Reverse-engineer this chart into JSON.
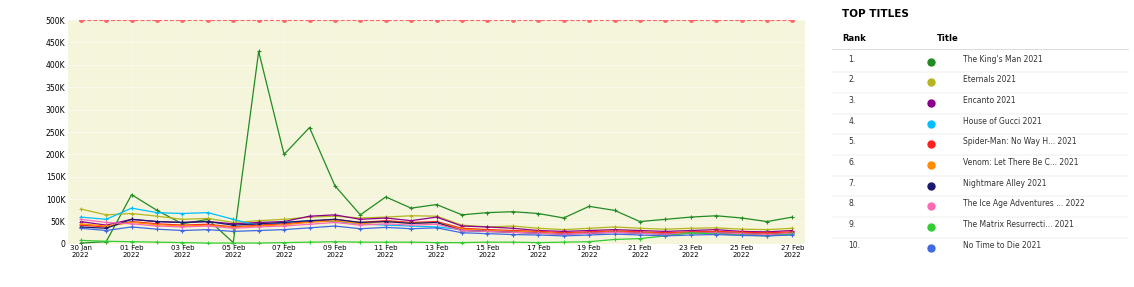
{
  "title": "TOP TITLES",
  "background_color": "#fffff5",
  "plot_bg_color": "#f5f5dc",
  "x_labels": [
    "30 Jan\n2022",
    "01 Feb\n2022",
    "03 Feb\n2022",
    "05 Feb\n2022",
    "07 Feb\n2022",
    "09 Feb\n2022",
    "11 Feb\n2022",
    "13 Feb\n2022",
    "15 Feb\n2022",
    "17 Feb\n2022",
    "19 Feb\n2022",
    "21 Feb\n2022",
    "23 Feb\n2022",
    "25 Feb\n2022",
    "27 Feb\n2022"
  ],
  "x_indices": [
    0,
    2,
    4,
    6,
    8,
    10,
    12,
    14,
    16,
    18,
    20,
    22,
    24,
    26,
    28
  ],
  "ylim": [
    0,
    500000
  ],
  "yticks": [
    0,
    50000,
    100000,
    150000,
    200000,
    250000,
    300000,
    350000,
    400000,
    450000,
    500000
  ],
  "ytick_labels": [
    "0",
    "50K",
    "100K",
    "150K",
    "200K",
    "250K",
    "300K",
    "350K",
    "400K",
    "450K",
    "500K"
  ],
  "series": [
    {
      "name": "The King's Man 2021",
      "rank": 1,
      "color": "#228B22",
      "values": [
        2000,
        5000,
        110000,
        75000,
        45000,
        55000,
        3000,
        430000,
        200000,
        260000,
        130000,
        65000,
        105000,
        80000,
        88000,
        65000,
        70000,
        72000,
        68000,
        58000,
        84000,
        75000,
        50000,
        55000,
        60000,
        63000,
        58000,
        50000,
        60000
      ]
    },
    {
      "name": "Eternals 2021",
      "rank": 2,
      "color": "#b5b520",
      "values": [
        78000,
        65000,
        68000,
        62000,
        55000,
        57000,
        48000,
        52000,
        55000,
        60000,
        62000,
        58000,
        60000,
        63000,
        62000,
        42000,
        38000,
        40000,
        35000,
        32000,
        35000,
        38000,
        35000,
        33000,
        35000,
        36000,
        33000,
        32000,
        35000
      ]
    },
    {
      "name": "Encanto 2021",
      "rank": 3,
      "color": "#8B008B",
      "values": [
        50000,
        42000,
        55000,
        50000,
        48000,
        50000,
        45000,
        48000,
        50000,
        62000,
        65000,
        55000,
        58000,
        52000,
        60000,
        40000,
        38000,
        35000,
        30000,
        28000,
        30000,
        32000,
        30000,
        28000,
        30000,
        32000,
        28000,
        27000,
        30000
      ]
    },
    {
      "name": "House of Gucci 2021",
      "rank": 4,
      "color": "#00BFFF",
      "values": [
        60000,
        55000,
        80000,
        70000,
        68000,
        70000,
        55000,
        40000,
        48000,
        52000,
        50000,
        45000,
        42000,
        40000,
        38000,
        32000,
        30000,
        28000,
        25000,
        23000,
        25000,
        27000,
        25000,
        23000,
        25000,
        26000,
        24000,
        22000,
        25000
      ]
    },
    {
      "name": "Spider-Man: No Way H... 2021",
      "rank": 5,
      "color": "#FF2020",
      "values": [
        42000,
        38000,
        50000,
        45000,
        42000,
        44000,
        38000,
        42000,
        45000,
        50000,
        55000,
        48000,
        52000,
        48000,
        50000,
        35000,
        32000,
        30000,
        28000,
        25000,
        27000,
        29000,
        27000,
        25000,
        27000,
        28000,
        26000,
        25000,
        27000
      ]
    },
    {
      "name": "Venom: Let There Be C... 2021",
      "rank": 6,
      "color": "#FF8C00",
      "values": [
        45000,
        40000,
        48000,
        43000,
        40000,
        42000,
        37000,
        40000,
        43000,
        48000,
        52000,
        45000,
        50000,
        46000,
        48000,
        33000,
        30000,
        28000,
        26000,
        23000,
        25000,
        27000,
        25000,
        23000,
        25000,
        26000,
        24000,
        22000,
        25000
      ]
    },
    {
      "name": "Nightmare Alley 2021",
      "rank": 7,
      "color": "#191970",
      "values": [
        38000,
        35000,
        55000,
        50000,
        48000,
        50000,
        42000,
        45000,
        48000,
        52000,
        55000,
        48000,
        50000,
        46000,
        48000,
        30000,
        28000,
        26000,
        24000,
        22000,
        24000,
        26000,
        24000,
        22000,
        24000,
        25000,
        23000,
        21000,
        24000
      ]
    },
    {
      "name": "The Ice Age Adventures ... 2022",
      "rank": 8,
      "color": "#FF69B4",
      "values": [
        55000,
        48000,
        45000,
        40000,
        38000,
        40000,
        35000,
        38000,
        40000,
        44000,
        48000,
        42000,
        45000,
        42000,
        44000,
        30000,
        28000,
        26000,
        24000,
        22000,
        24000,
        26000,
        24000,
        22000,
        24000,
        25000,
        23000,
        21000,
        24000
      ]
    },
    {
      "name": "The Matrix Resurrecti... 2021",
      "rank": 9,
      "color": "#32CD32",
      "values": [
        8000,
        6000,
        5000,
        4000,
        3000,
        2000,
        2000,
        2000,
        3000,
        4000,
        5000,
        4000,
        4000,
        4000,
        3000,
        3000,
        4000,
        4000,
        3000,
        4000,
        5000,
        10000,
        12000,
        18000,
        25000,
        22000,
        20000,
        18000,
        22000
      ]
    },
    {
      "name": "No Time to Die 2021",
      "rank": 10,
      "color": "#4169E1",
      "values": [
        35000,
        30000,
        38000,
        33000,
        30000,
        32000,
        28000,
        30000,
        32000,
        36000,
        40000,
        34000,
        37000,
        34000,
        36000,
        25000,
        23000,
        21000,
        20000,
        18000,
        20000,
        22000,
        20000,
        18000,
        20000,
        21000,
        19000,
        18000,
        20000
      ]
    }
  ],
  "dashed_line": {
    "color": "#FF6666",
    "value": 500000,
    "style": "--",
    "marker": "o",
    "marker_size": 3
  }
}
